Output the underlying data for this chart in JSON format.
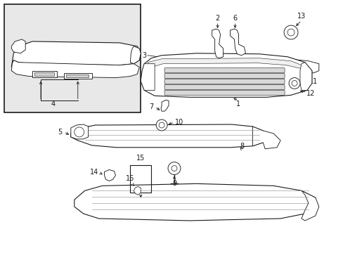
{
  "background_color": "#ffffff",
  "line_color": "#1a1a1a",
  "inset_fill": "#e8e8e8",
  "lw": 0.8,
  "figsize": [
    4.89,
    3.6
  ],
  "dpi": 100
}
